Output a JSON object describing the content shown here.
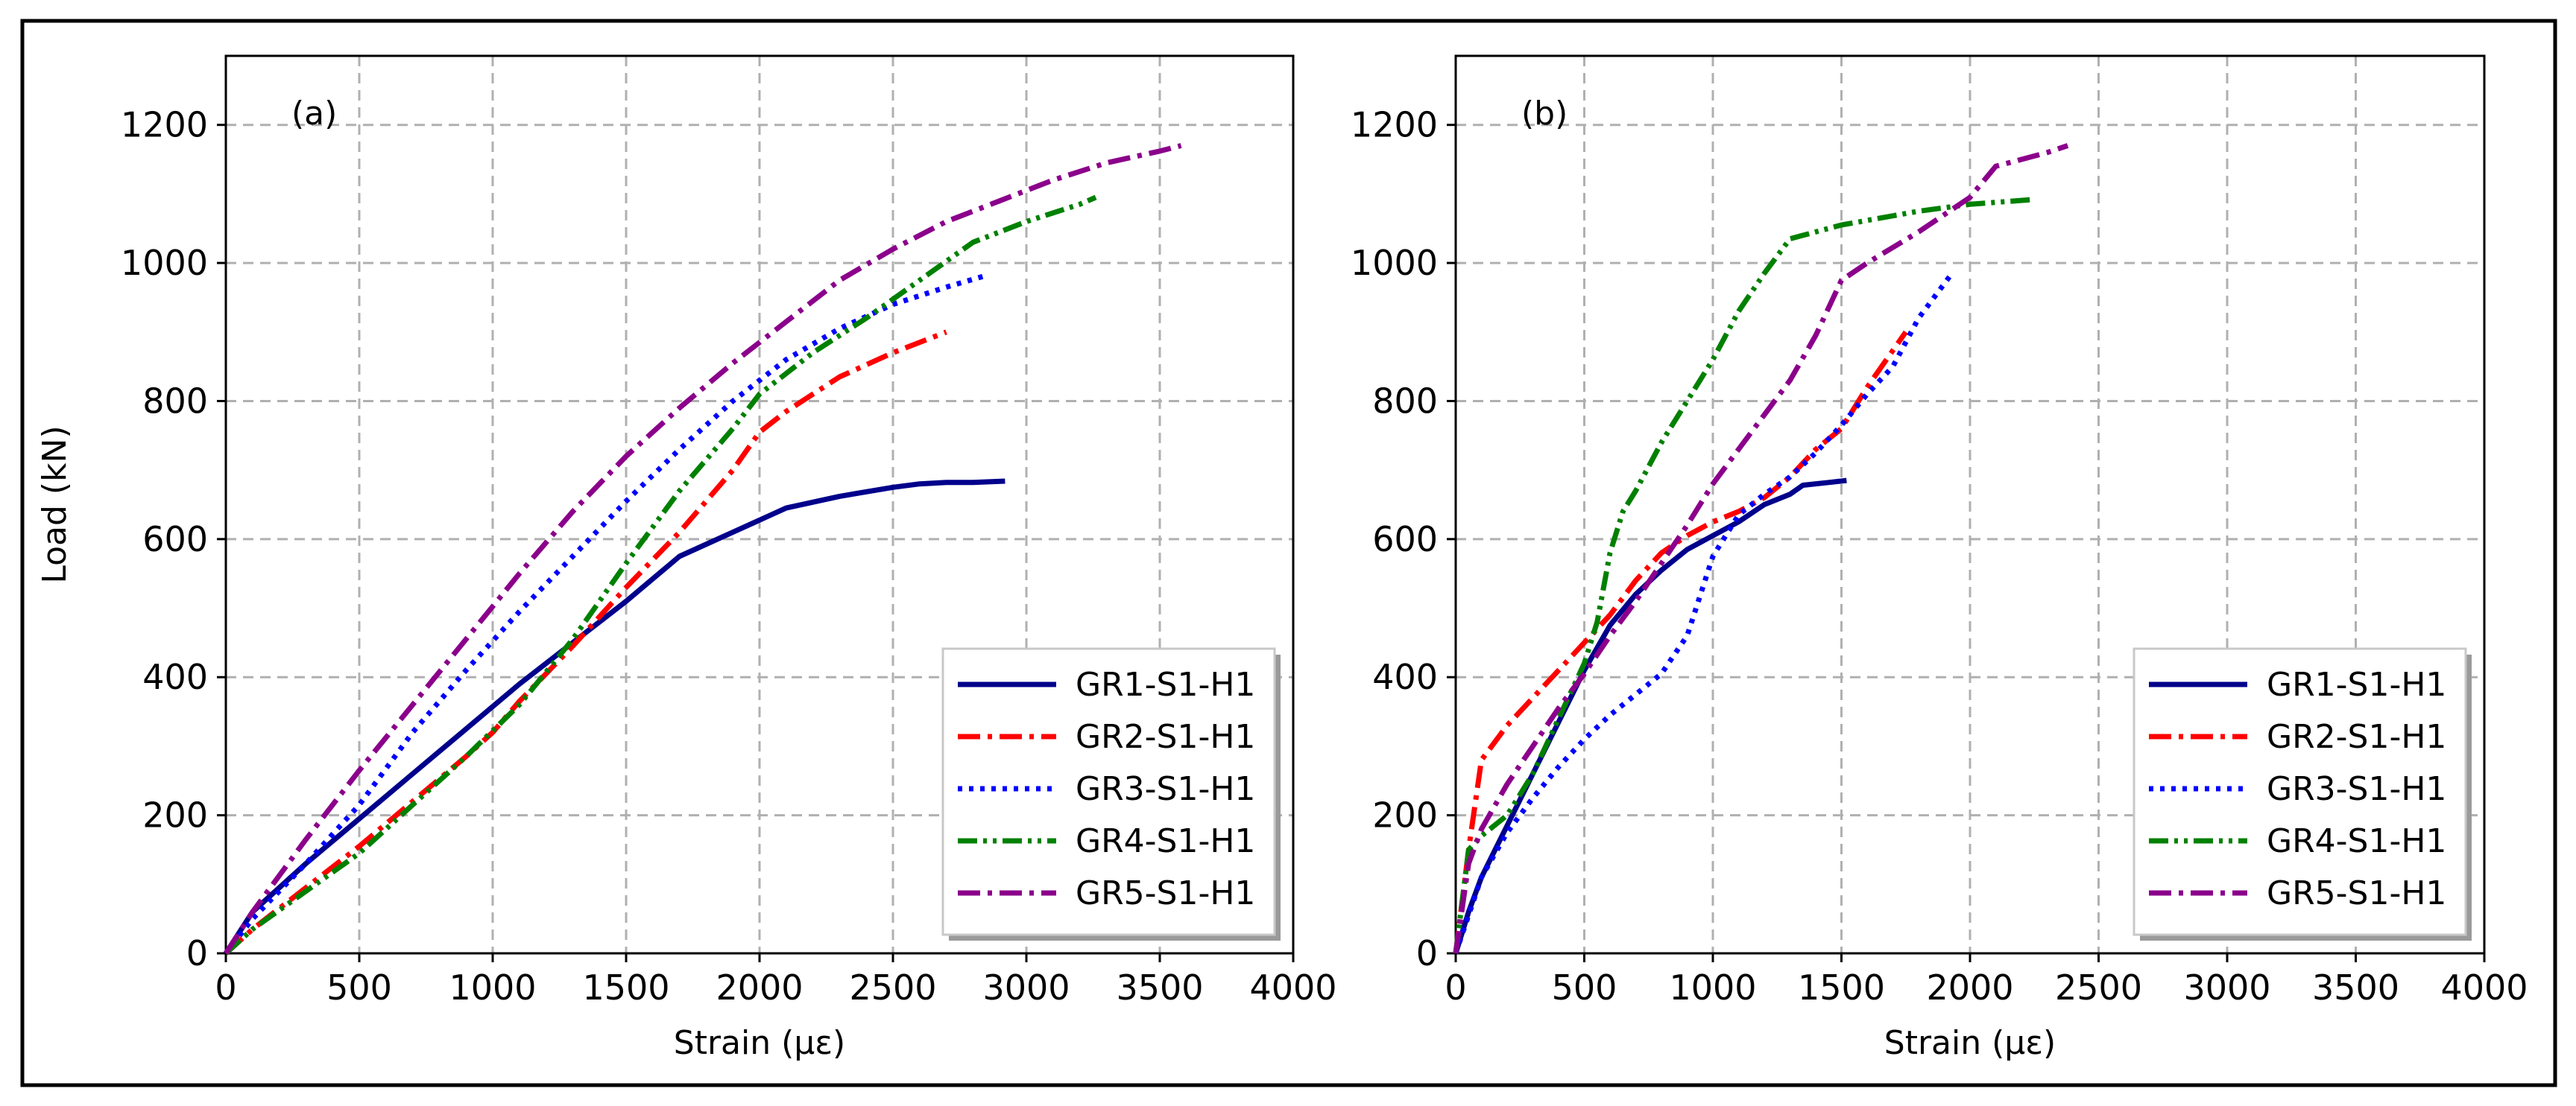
{
  "figure": {
    "panels": [
      {
        "label": "(a)"
      },
      {
        "label": "(b)"
      }
    ]
  },
  "chart_data": [
    {
      "type": "line",
      "panel_label": "(a)",
      "xlabel": "Strain (με)",
      "ylabel": "Load (kN)",
      "xlim": [
        0,
        4000
      ],
      "ylim": [
        0,
        1300
      ],
      "xticks": [
        0,
        500,
        1000,
        1500,
        2000,
        2500,
        3000,
        3500,
        4000
      ],
      "yticks": [
        0,
        200,
        400,
        600,
        800,
        1000,
        1200
      ],
      "grid": true,
      "legend_position": "lower-right",
      "series": [
        {
          "name": "GR1-S1-H1",
          "color": "#00008b",
          "style": "solid",
          "x": [
            0,
            100,
            300,
            500,
            700,
            900,
            1100,
            1300,
            1500,
            1700,
            1900,
            2100,
            2300,
            2500,
            2600,
            2700,
            2800,
            2920
          ],
          "y": [
            0,
            60,
            130,
            195,
            260,
            325,
            390,
            450,
            510,
            575,
            610,
            645,
            662,
            675,
            680,
            682,
            682,
            684
          ]
        },
        {
          "name": "GR2-S1-H1",
          "color": "#ff0000",
          "style": "dashdot",
          "x": [
            0,
            100,
            300,
            500,
            700,
            900,
            1000,
            1100,
            1300,
            1500,
            1700,
            1900,
            2000,
            2100,
            2300,
            2500,
            2700
          ],
          "y": [
            0,
            35,
            95,
            155,
            220,
            285,
            320,
            365,
            445,
            530,
            610,
            700,
            755,
            785,
            835,
            870,
            900
          ]
        },
        {
          "name": "GR3-S1-H1",
          "color": "#0000ff",
          "style": "dotted",
          "x": [
            0,
            100,
            300,
            500,
            700,
            900,
            1100,
            1300,
            1500,
            1700,
            1900,
            2100,
            2300,
            2500,
            2700,
            2850
          ],
          "y": [
            0,
            50,
            130,
            215,
            320,
            410,
            495,
            575,
            655,
            730,
            800,
            860,
            905,
            940,
            965,
            982
          ]
        },
        {
          "name": "GR4-S1-H1",
          "color": "#008000",
          "style": "dashdotdot",
          "x": [
            0,
            100,
            300,
            500,
            700,
            900,
            1100,
            1300,
            1500,
            1700,
            1900,
            2000,
            2200,
            2400,
            2600,
            2800,
            3000,
            3200,
            3260
          ],
          "y": [
            0,
            35,
            90,
            145,
            215,
            285,
            360,
            455,
            565,
            670,
            760,
            810,
            870,
            920,
            975,
            1030,
            1060,
            1085,
            1095
          ]
        },
        {
          "name": "GR5-S1-H1",
          "color": "#8b008b",
          "style": "dashdot",
          "x": [
            0,
            100,
            300,
            500,
            700,
            900,
            1100,
            1300,
            1500,
            1700,
            1900,
            2100,
            2300,
            2500,
            2700,
            2900,
            3100,
            3300,
            3500,
            3580
          ],
          "y": [
            0,
            60,
            165,
            265,
            360,
            455,
            550,
            640,
            720,
            790,
            855,
            915,
            975,
            1020,
            1060,
            1090,
            1120,
            1145,
            1162,
            1170
          ]
        }
      ]
    },
    {
      "type": "line",
      "panel_label": "(b)",
      "xlabel": "Strain (με)",
      "ylabel": "",
      "xlim": [
        0,
        4000
      ],
      "ylim": [
        0,
        1300
      ],
      "xticks": [
        0,
        500,
        1000,
        1500,
        2000,
        2500,
        3000,
        3500,
        4000
      ],
      "yticks": [
        0,
        200,
        400,
        600,
        800,
        1000,
        1200
      ],
      "grid": true,
      "legend_position": "lower-right",
      "series": [
        {
          "name": "GR1-S1-H1",
          "color": "#00008b",
          "style": "solid",
          "x": [
            0,
            50,
            100,
            200,
            300,
            400,
            500,
            600,
            700,
            800,
            900,
            1000,
            1100,
            1200,
            1300,
            1350,
            1450,
            1520
          ],
          "y": [
            0,
            60,
            110,
            185,
            260,
            335,
            410,
            475,
            520,
            555,
            585,
            605,
            625,
            650,
            665,
            678,
            682,
            685
          ]
        },
        {
          "name": "GR2-S1-H1",
          "color": "#ff0000",
          "style": "dashdot",
          "x": [
            0,
            50,
            100,
            200,
            300,
            400,
            500,
            600,
            700,
            800,
            900,
            1000,
            1100,
            1200,
            1300,
            1400,
            1500,
            1600,
            1750
          ],
          "y": [
            0,
            150,
            280,
            330,
            370,
            410,
            450,
            490,
            540,
            580,
            605,
            625,
            640,
            660,
            690,
            730,
            760,
            820,
            900
          ]
        },
        {
          "name": "GR3-S1-H1",
          "color": "#0000ff",
          "style": "dotted",
          "x": [
            0,
            100,
            200,
            300,
            400,
            500,
            600,
            700,
            800,
            900,
            1000,
            1100,
            1200,
            1300,
            1400,
            1500,
            1600,
            1700,
            1800,
            1920
          ],
          "y": [
            0,
            110,
            175,
            225,
            270,
            310,
            345,
            375,
            405,
            460,
            575,
            635,
            665,
            690,
            725,
            765,
            810,
            850,
            920,
            980
          ]
        },
        {
          "name": "GR4-S1-H1",
          "color": "#008000",
          "style": "dashdotdot",
          "x": [
            0,
            50,
            100,
            200,
            300,
            400,
            500,
            550,
            600,
            650,
            700,
            800,
            900,
            1000,
            1100,
            1200,
            1300,
            1500,
            1800,
            2000,
            2250
          ],
          "y": [
            0,
            150,
            170,
            200,
            260,
            340,
            420,
            480,
            580,
            640,
            670,
            740,
            800,
            860,
            930,
            985,
            1035,
            1055,
            1075,
            1085,
            1092
          ]
        },
        {
          "name": "GR5-S1-H1",
          "color": "#8b008b",
          "style": "dashdot",
          "x": [
            0,
            50,
            100,
            200,
            300,
            400,
            500,
            600,
            700,
            800,
            900,
            1000,
            1100,
            1200,
            1300,
            1400,
            1500,
            1600,
            1800,
            2000,
            2100,
            2300,
            2380
          ],
          "y": [
            0,
            130,
            180,
            245,
            300,
            355,
            405,
            460,
            510,
            565,
            620,
            680,
            730,
            780,
            830,
            895,
            975,
            1000,
            1045,
            1095,
            1140,
            1160,
            1170
          ]
        }
      ]
    }
  ]
}
